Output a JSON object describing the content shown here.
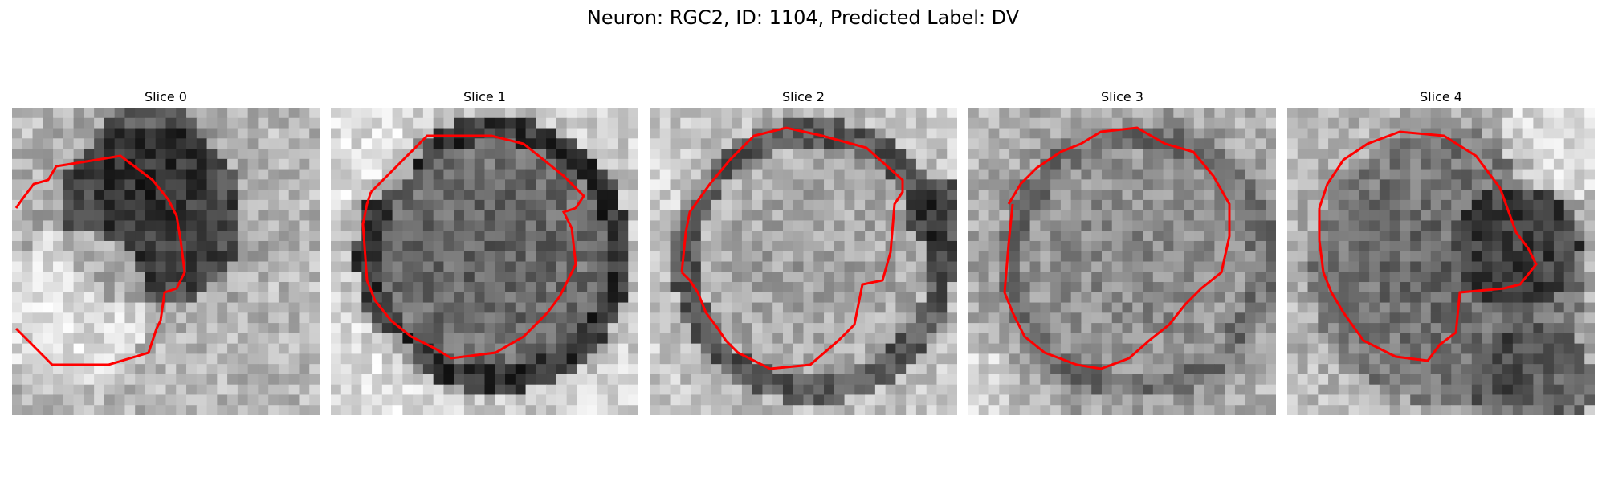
{
  "figure": {
    "title": "Neuron: RGC2, ID: 1104, Predicted Label: DV"
  },
  "panels": [
    {
      "title": "Slice 0"
    },
    {
      "title": "Slice 1"
    },
    {
      "title": "Slice 2"
    },
    {
      "title": "Slice 3"
    },
    {
      "title": "Slice 4"
    }
  ],
  "colors": {
    "contour": "#ff0000",
    "background": "#ffffff"
  }
}
